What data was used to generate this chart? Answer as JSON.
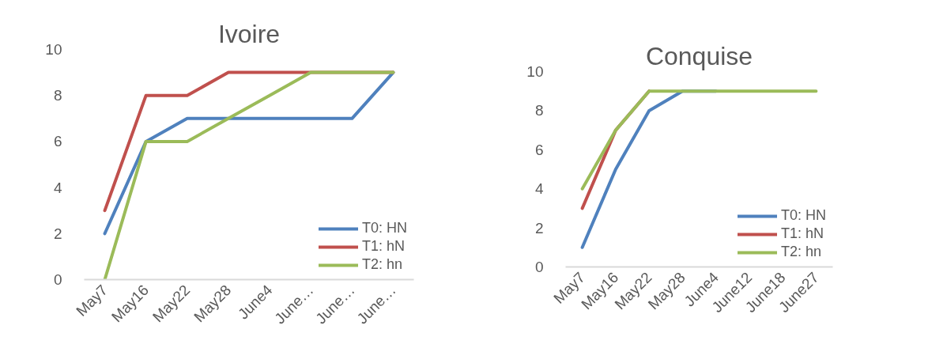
{
  "chart_data": [
    {
      "type": "line",
      "title": "Ivoire",
      "categories": [
        "May7",
        "May16",
        "May22",
        "May28",
        "June4",
        "June…",
        "June…",
        "June…"
      ],
      "series": [
        {
          "name": "T0: HN",
          "color": "#4f81bd",
          "values": [
            2,
            6,
            7,
            7,
            7,
            7,
            7,
            9
          ]
        },
        {
          "name": "T1: hN",
          "color": "#c0504d",
          "values": [
            3,
            8,
            8,
            9,
            9,
            9,
            9,
            9
          ]
        },
        {
          "name": "T2: hn",
          "color": "#9bbb59",
          "values": [
            0,
            6,
            6,
            7,
            8,
            9,
            9,
            9
          ]
        }
      ],
      "ylim": [
        0,
        10
      ],
      "yticks": [
        0,
        2,
        4,
        6,
        8,
        10
      ],
      "grid": false,
      "legend": "bottom right"
    },
    {
      "type": "line",
      "title": "Conquise",
      "categories": [
        "May7",
        "May16",
        "May22",
        "May28",
        "June4",
        "June12",
        "June18",
        "June27"
      ],
      "series": [
        {
          "name": "T0: HN",
          "color": "#4f81bd",
          "values": [
            1,
            5,
            8,
            9,
            9,
            null,
            null,
            null
          ]
        },
        {
          "name": "T1: hN",
          "color": "#c0504d",
          "values": [
            3,
            7,
            9,
            null,
            null,
            null,
            null,
            null
          ]
        },
        {
          "name": "T2: hn",
          "color": "#9bbb59",
          "values": [
            4,
            7,
            9,
            9,
            9,
            9,
            9,
            9
          ]
        }
      ],
      "ylim": [
        0,
        10
      ],
      "yticks": [
        0,
        2,
        4,
        6,
        8,
        10
      ],
      "grid": false,
      "legend": "bottom right"
    }
  ]
}
